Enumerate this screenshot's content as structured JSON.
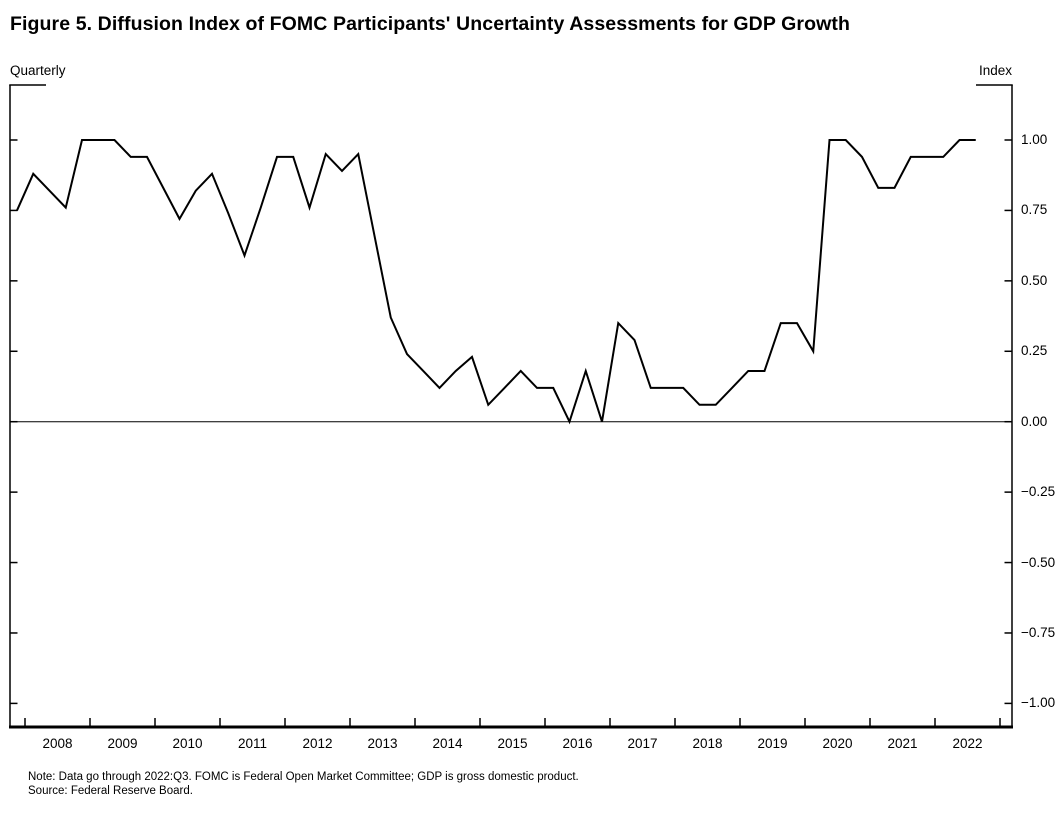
{
  "title": "Figure 5. Diffusion Index of FOMC Participants' Uncertainty Assessments for GDP Growth",
  "axis_top_left_label": "Quarterly",
  "axis_top_right_label": "Index",
  "note_line1": "Note: Data go through 2022:Q3. FOMC is Federal Open Market Committee; GDP is gross domestic product.",
  "note_line2": "Source: Federal Reserve Board.",
  "colors": {
    "background": "#ffffff",
    "line": "#000000",
    "axis": "#000000",
    "text": "#000000"
  },
  "chart_data": {
    "type": "line",
    "title": "Figure 5. Diffusion Index of FOMC Participants' Uncertainty Assessments for GDP Growth",
    "xlabel": "",
    "ylabel": "Index",
    "frequency_note": "Quarterly",
    "ylim": [
      -1.0,
      1.0
    ],
    "grid": false,
    "zero_line": true,
    "y_axis_side": "right",
    "y_ticks": [
      1.0,
      0.75,
      0.5,
      0.25,
      0.0,
      -0.25,
      -0.5,
      -0.75,
      -1.0
    ],
    "y_tick_labels": [
      "1.00",
      "0.75",
      "0.50",
      "0.25",
      "0.00",
      "−0.25",
      "−0.50",
      "−0.75",
      "−1.00"
    ],
    "x_tick_years": [
      "2008",
      "2009",
      "2010",
      "2011",
      "2012",
      "2013",
      "2014",
      "2015",
      "2016",
      "2017",
      "2018",
      "2019",
      "2020",
      "2021",
      "2022"
    ],
    "x_start": "2007:Q4",
    "x_end": "2022:Q3",
    "series": [
      {
        "name": "Diffusion index of FOMC participants' uncertainty assessments for GDP growth",
        "quarters": [
          "2007:Q4",
          "2008:Q1",
          "2008:Q2",
          "2008:Q3",
          "2008:Q4",
          "2009:Q1",
          "2009:Q2",
          "2009:Q3",
          "2009:Q4",
          "2010:Q1",
          "2010:Q2",
          "2010:Q3",
          "2010:Q4",
          "2011:Q1",
          "2011:Q2",
          "2011:Q3",
          "2011:Q4",
          "2012:Q1",
          "2012:Q2",
          "2012:Q3",
          "2012:Q4",
          "2013:Q1",
          "2013:Q2",
          "2013:Q3",
          "2013:Q4",
          "2014:Q1",
          "2014:Q2",
          "2014:Q3",
          "2014:Q4",
          "2015:Q1",
          "2015:Q2",
          "2015:Q3",
          "2015:Q4",
          "2016:Q1",
          "2016:Q2",
          "2016:Q3",
          "2016:Q4",
          "2017:Q1",
          "2017:Q2",
          "2017:Q3",
          "2017:Q4",
          "2018:Q1",
          "2018:Q2",
          "2018:Q3",
          "2018:Q4",
          "2019:Q1",
          "2019:Q2",
          "2019:Q3",
          "2019:Q4",
          "2020:Q1",
          "2020:Q2",
          "2020:Q3",
          "2020:Q4",
          "2021:Q1",
          "2021:Q2",
          "2021:Q3",
          "2021:Q4",
          "2022:Q1",
          "2022:Q2",
          "2022:Q3"
        ],
        "values": [
          0.75,
          0.88,
          0.82,
          0.76,
          1.0,
          1.0,
          1.0,
          0.94,
          0.94,
          0.83,
          0.72,
          0.82,
          0.88,
          0.74,
          0.59,
          0.76,
          0.94,
          0.94,
          0.76,
          0.95,
          0.89,
          0.95,
          0.66,
          0.37,
          0.24,
          0.18,
          0.12,
          0.18,
          0.23,
          0.06,
          0.12,
          0.18,
          0.12,
          0.12,
          0.0,
          0.18,
          0.0,
          0.35,
          0.29,
          0.12,
          0.12,
          0.12,
          0.06,
          0.06,
          0.12,
          0.18,
          0.18,
          0.35,
          0.35,
          0.25,
          1.0,
          1.0,
          0.94,
          0.83,
          0.83,
          0.94,
          0.94,
          0.94,
          1.0,
          1.0
        ]
      }
    ]
  }
}
